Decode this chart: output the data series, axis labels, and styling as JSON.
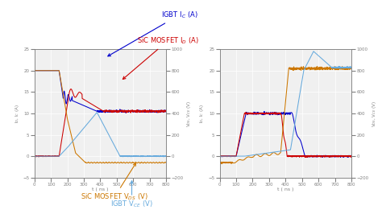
{
  "left_ylim": [
    -5,
    25
  ],
  "right_ylim": [
    -200,
    1000
  ],
  "xlim": [
    0,
    800
  ],
  "colors": {
    "igbt_ic": "#0000cc",
    "sic_id": "#cc0000",
    "sic_vds": "#cc7700",
    "igbt_vce": "#66aadd"
  },
  "bg_color": "#f0f0f0",
  "ann_igbt_ic": "IGBT I$_C$ (A)",
  "ann_sic_id": "SiC MOSFET I$_D$ (A)",
  "ann_sic_vds": "SiC MOSFET V$_{DS}$ (V)",
  "ann_igbt_vce": "IGBT V$_{CE}$ (V)",
  "ylabel_left": "I$_D$, I$_C$ (A)",
  "ylabel_right": "V$_{DS}$, V$_{CE}$ (V)",
  "xlabel": "t ( ns )"
}
